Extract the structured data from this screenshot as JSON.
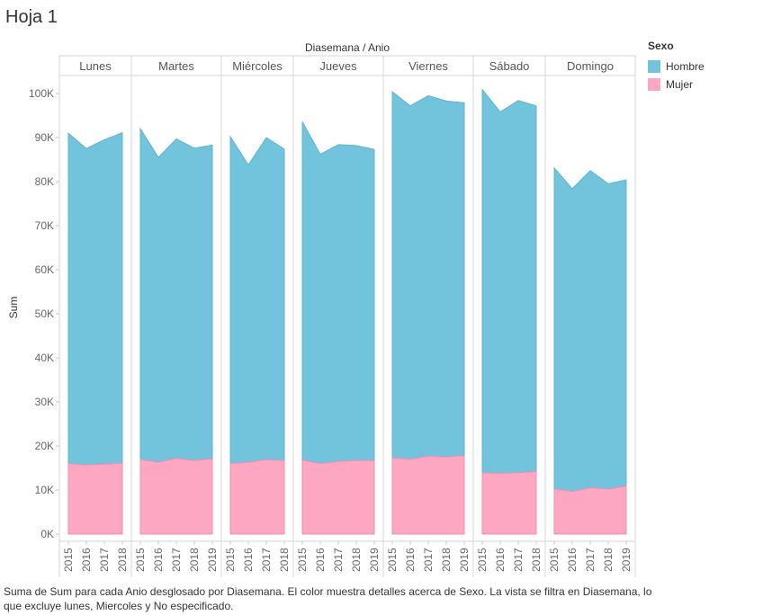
{
  "sheet": {
    "title": "Hoja 1"
  },
  "caption": "Suma de Sum para cada Anio desglosado por Diasemana.  El color muestra detalles acerca de Sexo. La vista se filtra en Diasemana, lo que excluye lunes, Miercoles y No especificado.",
  "legend": {
    "title": "Sexo",
    "items": [
      {
        "label": "Hombre",
        "color": "#72c3dc"
      },
      {
        "label": "Mujer",
        "color": "#fea7c3"
      }
    ]
  },
  "chart_data": {
    "type": "area",
    "stacked": true,
    "column_header": "Diasemana / Anio",
    "ylabel": "Sum",
    "ylim": [
      0,
      110000
    ],
    "yticks": [
      0,
      10000,
      20000,
      30000,
      40000,
      50000,
      60000,
      70000,
      80000,
      90000,
      100000
    ],
    "ytick_labels": [
      "0K",
      "10K",
      "20K",
      "30K",
      "40K",
      "50K",
      "60K",
      "70K",
      "80K",
      "90K",
      "100K"
    ],
    "grid": false,
    "legend_position": "top-right",
    "colors": {
      "Hombre": "#72c3dc",
      "Mujer": "#fea7c3"
    },
    "panels": [
      {
        "day": "Lunes",
        "years": [
          "2015",
          "2016",
          "2017",
          "2018"
        ],
        "series": [
          {
            "name": "Mujer",
            "values": [
              16000,
              15700,
              15900,
              16100
            ]
          },
          {
            "name": "Hombre",
            "values": [
              75000,
              71800,
              73600,
              75000
            ]
          }
        ]
      },
      {
        "day": "Martes",
        "years": [
          "2015",
          "2016",
          "2017",
          "2018",
          "2019"
        ],
        "series": [
          {
            "name": "Mujer",
            "values": [
              16900,
              16300,
              17200,
              16700,
              17100
            ]
          },
          {
            "name": "Hombre",
            "values": [
              75100,
              69200,
              72500,
              70900,
              71200
            ]
          }
        ]
      },
      {
        "day": "Miércoles",
        "years": [
          "2015",
          "2016",
          "2017",
          "2018"
        ],
        "series": [
          {
            "name": "Mujer",
            "values": [
              16000,
              16300,
              16900,
              16700
            ]
          },
          {
            "name": "Hombre",
            "values": [
              74200,
              67500,
              73100,
              70700
            ]
          }
        ]
      },
      {
        "day": "Jueves",
        "years": [
          "2015",
          "2016",
          "2017",
          "2018",
          "2019"
        ],
        "series": [
          {
            "name": "Mujer",
            "values": [
              16800,
              16000,
              16500,
              16700,
              16700
            ]
          },
          {
            "name": "Hombre",
            "values": [
              76800,
              70200,
              71900,
              71500,
              70600
            ]
          }
        ]
      },
      {
        "day": "Viernes",
        "years": [
          "2015",
          "2016",
          "2017",
          "2018",
          "2019"
        ],
        "series": [
          {
            "name": "Mujer",
            "values": [
              17300,
              17000,
              17700,
              17500,
              17800
            ]
          },
          {
            "name": "Hombre",
            "values": [
              83100,
              80200,
              81800,
              80800,
              80100
            ]
          }
        ]
      },
      {
        "day": "Sábado",
        "years": [
          "2015",
          "2016",
          "2017",
          "2018"
        ],
        "series": [
          {
            "name": "Mujer",
            "values": [
              13900,
              13800,
              13900,
              14200
            ]
          },
          {
            "name": "Hombre",
            "values": [
              87000,
              82000,
              84500,
              83000
            ]
          }
        ]
      },
      {
        "day": "Domingo",
        "years": [
          "2015",
          "2016",
          "2017",
          "2018",
          "2019"
        ],
        "series": [
          {
            "name": "Mujer",
            "values": [
              10200,
              9700,
              10500,
              10200,
              10900
            ]
          },
          {
            "name": "Hombre",
            "values": [
              72900,
              68700,
              72000,
              69300,
              69500
            ]
          }
        ]
      }
    ]
  }
}
